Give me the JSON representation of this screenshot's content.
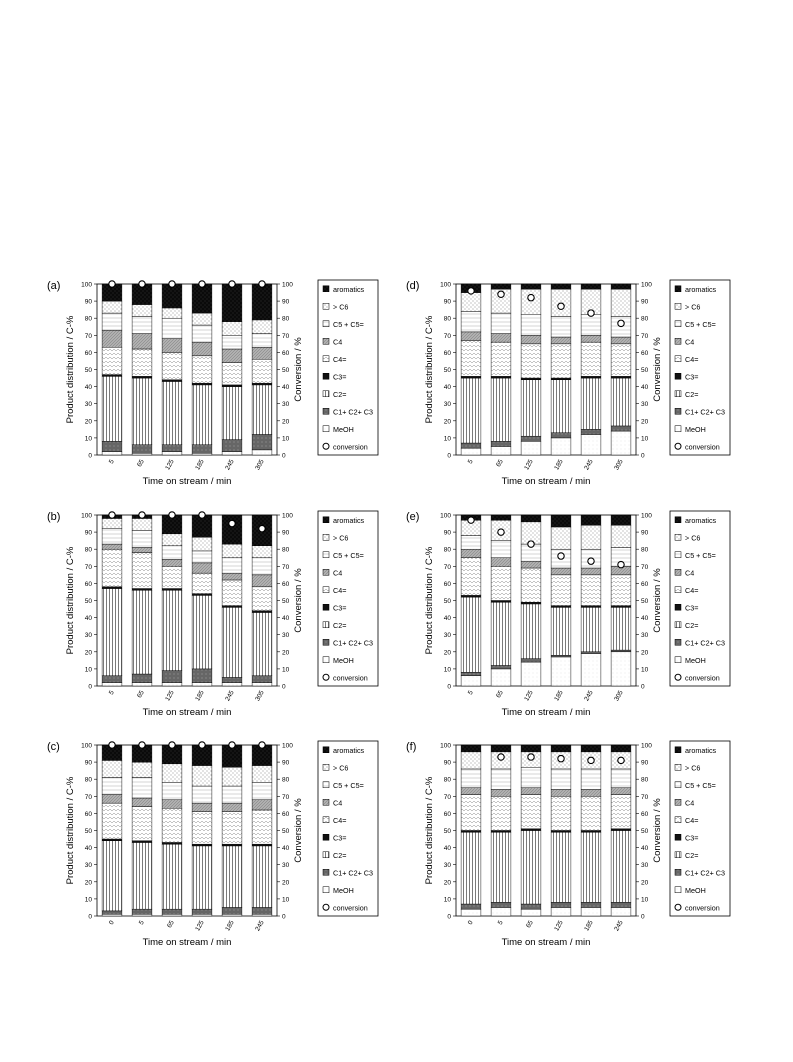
{
  "panel_common": {
    "ylabel": "Product distribution / C-%",
    "ylabel2": "Conversion / %",
    "xlabel": "Time on stream / min",
    "ylim": [
      0,
      100
    ],
    "yticks": [
      0,
      10,
      20,
      30,
      40,
      50,
      60,
      70,
      80,
      90,
      100
    ],
    "legend": [
      "aromatics",
      "> C6",
      "C5 + C5=",
      "C4",
      "C4=",
      "C3=",
      "C2=",
      "C1+ C2+ C3",
      "MeOH",
      "conversion"
    ]
  },
  "chart_data": [
    {
      "panel": "(a)",
      "type": "bar",
      "stacked": true,
      "categories": [
        "5",
        "65",
        "125",
        "185",
        "245",
        "305"
      ],
      "series": [
        {
          "name": "MeOH",
          "values": [
            2,
            1,
            2,
            1,
            2,
            3
          ]
        },
        {
          "name": "C1+ C2+ C3",
          "values": [
            6,
            5,
            4,
            5,
            7,
            9
          ]
        },
        {
          "name": "C2=",
          "values": [
            38,
            39,
            37,
            35,
            31,
            29
          ]
        },
        {
          "name": "C3=",
          "values": [
            1,
            1,
            1,
            1,
            1,
            1
          ]
        },
        {
          "name": "C4=",
          "values": [
            16,
            16,
            16,
            16,
            13,
            14
          ]
        },
        {
          "name": "C4",
          "values": [
            10,
            9,
            8,
            8,
            8,
            7
          ]
        },
        {
          "name": "C5 + C5=",
          "values": [
            10,
            10,
            12,
            10,
            8,
            8
          ]
        },
        {
          "name": "> C6",
          "values": [
            7,
            7,
            6,
            7,
            8,
            8
          ]
        },
        {
          "name": "aromatics",
          "values": [
            10,
            12,
            14,
            17,
            22,
            21
          ]
        }
      ],
      "conversion": [
        100,
        100,
        100,
        100,
        100,
        100
      ]
    },
    {
      "panel": "(d)",
      "type": "bar",
      "stacked": true,
      "categories": [
        "5",
        "65",
        "125",
        "185",
        "245",
        "305"
      ],
      "series": [
        {
          "name": "MeOH",
          "values": [
            4,
            5,
            8,
            10,
            12,
            14
          ]
        },
        {
          "name": "C1+ C2+ C3",
          "values": [
            3,
            3,
            3,
            3,
            3,
            3
          ]
        },
        {
          "name": "C2=",
          "values": [
            38,
            37,
            33,
            31,
            30,
            28
          ]
        },
        {
          "name": "C3=",
          "values": [
            1,
            1,
            1,
            1,
            1,
            1
          ]
        },
        {
          "name": "C4=",
          "values": [
            21,
            20,
            20,
            20,
            20,
            19
          ]
        },
        {
          "name": "C4",
          "values": [
            5,
            5,
            5,
            4,
            4,
            4
          ]
        },
        {
          "name": "C5 + C5=",
          "values": [
            12,
            12,
            12,
            12,
            12,
            12
          ]
        },
        {
          "name": "> C6",
          "values": [
            11,
            14,
            15,
            16,
            15,
            16
          ]
        },
        {
          "name": "aromatics",
          "values": [
            5,
            3,
            3,
            3,
            3,
            3
          ]
        }
      ],
      "conversion": [
        96,
        94,
        92,
        87,
        83,
        77
      ]
    },
    {
      "panel": "(b)",
      "type": "bar",
      "stacked": true,
      "categories": [
        "5",
        "65",
        "125",
        "185",
        "245",
        "305"
      ],
      "series": [
        {
          "name": "MeOH",
          "values": [
            2,
            2,
            2,
            2,
            2,
            2
          ]
        },
        {
          "name": "C1+ C2+ C3",
          "values": [
            4,
            5,
            7,
            8,
            3,
            4
          ]
        },
        {
          "name": "C2=",
          "values": [
            51,
            49,
            47,
            43,
            41,
            37
          ]
        },
        {
          "name": "C3=",
          "values": [
            1,
            1,
            1,
            1,
            1,
            1
          ]
        },
        {
          "name": "C4=",
          "values": [
            22,
            21,
            13,
            12,
            15,
            14
          ]
        },
        {
          "name": "C4",
          "values": [
            3,
            3,
            4,
            6,
            4,
            7
          ]
        },
        {
          "name": "C5 + C5=",
          "values": [
            9,
            10,
            8,
            7,
            9,
            10
          ]
        },
        {
          "name": "> C6",
          "values": [
            6,
            7,
            7,
            8,
            8,
            7
          ]
        },
        {
          "name": "aromatics",
          "values": [
            2,
            2,
            11,
            13,
            17,
            18
          ]
        }
      ],
      "conversion": [
        100,
        100,
        100,
        100,
        95,
        92
      ]
    },
    {
      "panel": "(e)",
      "type": "bar",
      "stacked": true,
      "categories": [
        "5",
        "65",
        "125",
        "185",
        "245",
        "305"
      ],
      "series": [
        {
          "name": "MeOH",
          "values": [
            6,
            10,
            14,
            17,
            19,
            20
          ]
        },
        {
          "name": "C1+ C2+ C3",
          "values": [
            2,
            2,
            2,
            1,
            1,
            1
          ]
        },
        {
          "name": "C2=",
          "values": [
            44,
            37,
            32,
            28,
            26,
            25
          ]
        },
        {
          "name": "C3=",
          "values": [
            1,
            1,
            1,
            1,
            1,
            1
          ]
        },
        {
          "name": "C4=",
          "values": [
            22,
            20,
            20,
            18,
            18,
            18
          ]
        },
        {
          "name": "C4",
          "values": [
            5,
            5,
            4,
            4,
            4,
            5
          ]
        },
        {
          "name": "C5 + C5=",
          "values": [
            8,
            10,
            10,
            11,
            11,
            11
          ]
        },
        {
          "name": "> C6",
          "values": [
            9,
            12,
            13,
            13,
            14,
            13
          ]
        },
        {
          "name": "aromatics",
          "values": [
            3,
            3,
            4,
            7,
            6,
            6
          ]
        }
      ],
      "conversion": [
        97,
        90,
        83,
        76,
        73,
        71
      ]
    },
    {
      "panel": "(c)",
      "type": "bar",
      "stacked": true,
      "categories": [
        "0",
        "5",
        "65",
        "125",
        "185",
        "245"
      ],
      "series": [
        {
          "name": "MeOH",
          "values": [
            1,
            1,
            1,
            1,
            1,
            1
          ]
        },
        {
          "name": "C1+ C2+ C3",
          "values": [
            2,
            3,
            3,
            3,
            4,
            4
          ]
        },
        {
          "name": "C2=",
          "values": [
            41,
            39,
            38,
            37,
            36,
            36
          ]
        },
        {
          "name": "C3=",
          "values": [
            1,
            1,
            1,
            1,
            1,
            1
          ]
        },
        {
          "name": "C4=",
          "values": [
            21,
            20,
            20,
            19,
            19,
            20
          ]
        },
        {
          "name": "C4",
          "values": [
            5,
            5,
            5,
            5,
            5,
            6
          ]
        },
        {
          "name": "C5 + C5=",
          "values": [
            10,
            12,
            10,
            10,
            10,
            10
          ]
        },
        {
          "name": "> C6",
          "values": [
            10,
            9,
            11,
            12,
            11,
            10
          ]
        },
        {
          "name": "aromatics",
          "values": [
            9,
            10,
            11,
            12,
            13,
            12
          ]
        }
      ],
      "conversion": [
        100,
        100,
        100,
        100,
        100,
        100
      ]
    },
    {
      "panel": "(f)",
      "type": "bar",
      "stacked": true,
      "categories": [
        "0",
        "5",
        "65",
        "125",
        "185",
        "245"
      ],
      "series": [
        {
          "name": "MeOH",
          "values": [
            4,
            5,
            4,
            5,
            5,
            5
          ]
        },
        {
          "name": "C1+ C2+ C3",
          "values": [
            3,
            3,
            3,
            3,
            3,
            3
          ]
        },
        {
          "name": "C2=",
          "values": [
            42,
            41,
            43,
            41,
            41,
            42
          ]
        },
        {
          "name": "C3=",
          "values": [
            1,
            1,
            1,
            1,
            1,
            1
          ]
        },
        {
          "name": "C4=",
          "values": [
            21,
            20,
            20,
            20,
            20,
            20
          ]
        },
        {
          "name": "C4",
          "values": [
            4,
            4,
            4,
            4,
            4,
            4
          ]
        },
        {
          "name": "C5 + C5=",
          "values": [
            11,
            12,
            12,
            12,
            12,
            11
          ]
        },
        {
          "name": "> C6",
          "values": [
            10,
            10,
            9,
            10,
            10,
            10
          ]
        },
        {
          "name": "aromatics",
          "values": [
            4,
            4,
            4,
            4,
            4,
            4
          ]
        }
      ],
      "conversion": [
        null,
        93,
        93,
        92,
        91,
        91
      ]
    }
  ]
}
